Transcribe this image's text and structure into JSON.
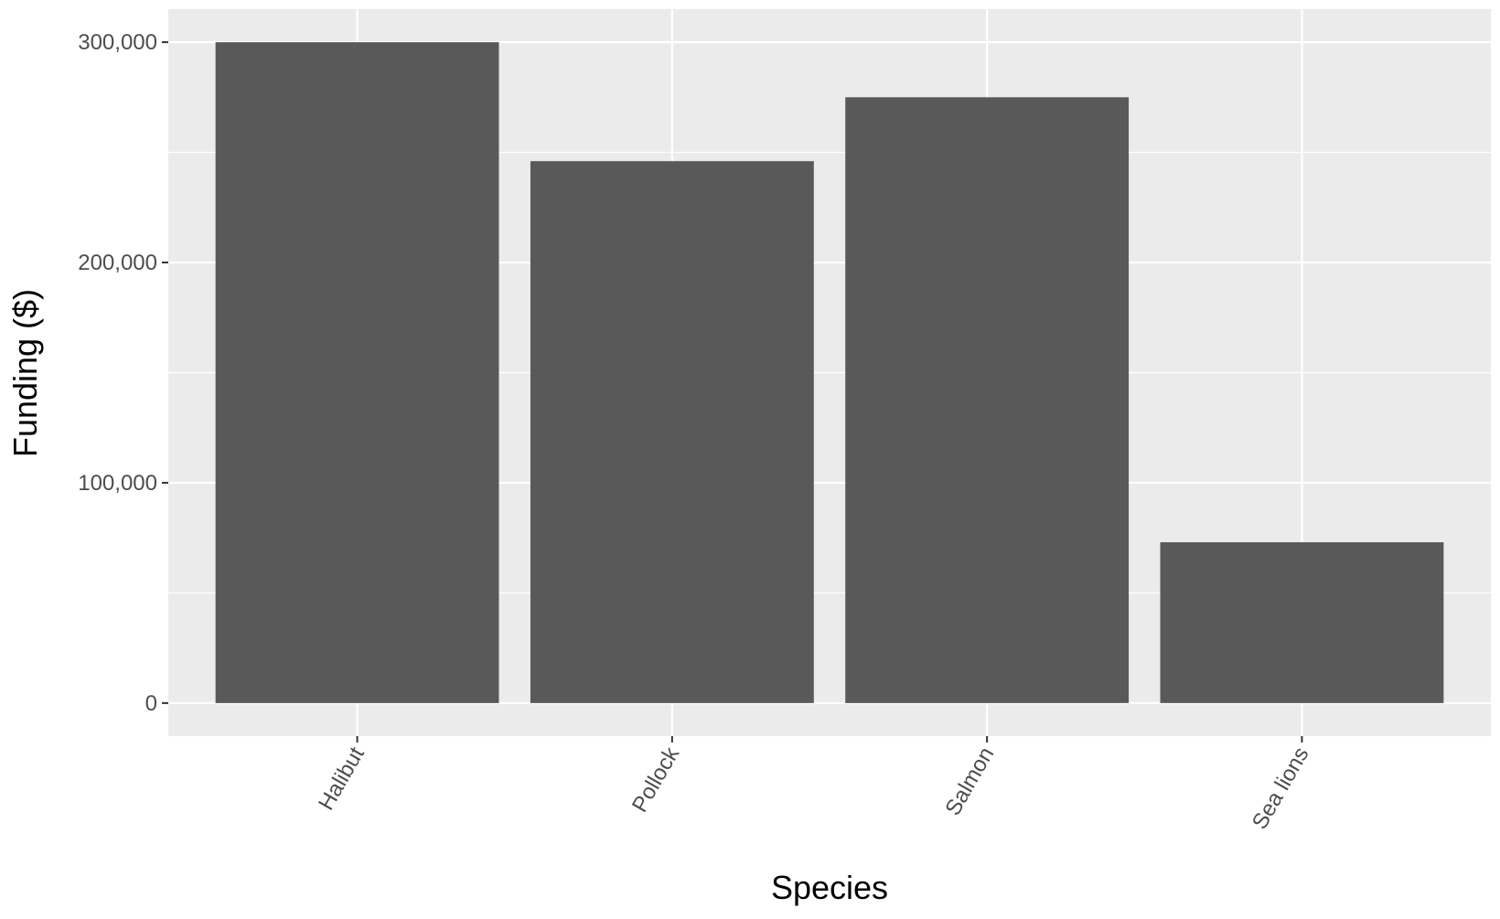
{
  "chart_data": {
    "type": "bar",
    "categories": [
      "Halibut",
      "Pollock",
      "Salmon",
      "Sea lions"
    ],
    "values": [
      300000,
      246000,
      275000,
      73000
    ],
    "xlabel": "Species",
    "ylabel": "Funding ($)",
    "ylim": [
      -15000,
      315000
    ],
    "yticks": [
      0,
      100000,
      200000,
      300000
    ],
    "ytick_labels": [
      "0",
      "100,000",
      "200,000",
      "300,000"
    ],
    "grid": true,
    "colors": {
      "bar": "#595959",
      "panel": "#ebebeb",
      "grid": "#ffffff",
      "tick_text": "#4d4d4d"
    }
  }
}
